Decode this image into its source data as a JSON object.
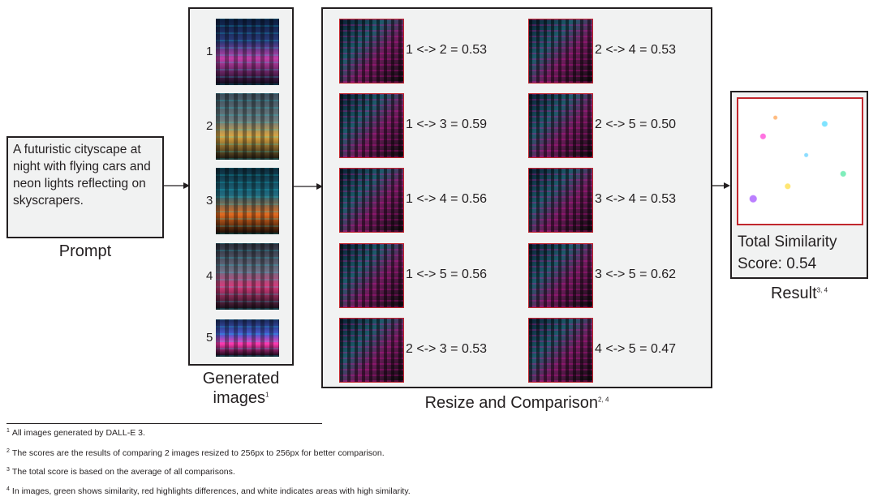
{
  "prompt": {
    "text": "A futuristic cityscape at night with flying cars and neon lights reflecting on skyscrapers.",
    "label": "Prompt"
  },
  "generated": {
    "label": "Generated images",
    "label_sup": "1",
    "images": [
      {
        "num": "1"
      },
      {
        "num": "2"
      },
      {
        "num": "3"
      },
      {
        "num": "4"
      },
      {
        "num": "5"
      }
    ]
  },
  "comparison": {
    "label": "Resize and Comparison",
    "label_sup": "2, 4",
    "pairs": [
      {
        "text": "1 <-> 2 = 0.53"
      },
      {
        "text": "2 <-> 4 = 0.53"
      },
      {
        "text": "1 <-> 3 = 0.59"
      },
      {
        "text": "2 <-> 5 = 0.50"
      },
      {
        "text": "1 <-> 4 = 0.56"
      },
      {
        "text": "3 <-> 4 = 0.53"
      },
      {
        "text": "1 <-> 5 = 0.56"
      },
      {
        "text": "3 <-> 5 = 0.62"
      },
      {
        "text": "2 <-> 3 = 0.53"
      },
      {
        "text": "4 <-> 5 = 0.47"
      }
    ]
  },
  "result": {
    "line1": "Total Similarity",
    "line2": "Score: 0.54",
    "label": "Result",
    "label_sup": "3, 4"
  },
  "footnotes": [
    {
      "num": "1",
      "text": "All images generated by DALL-E 3."
    },
    {
      "num": "2",
      "text": "The scores are the results of comparing 2 images resized to 256px to 256px for better comparison."
    },
    {
      "num": "3",
      "text": "The total score is based on the average of all comparisons."
    },
    {
      "num": "4",
      "text": "In images, green shows similarity, red highlights differences, and white indicates areas with high similarity."
    }
  ],
  "colors": {
    "box_fill": "#f1f2f2",
    "outline": "#231f20",
    "diff_border": "#c1272d"
  }
}
